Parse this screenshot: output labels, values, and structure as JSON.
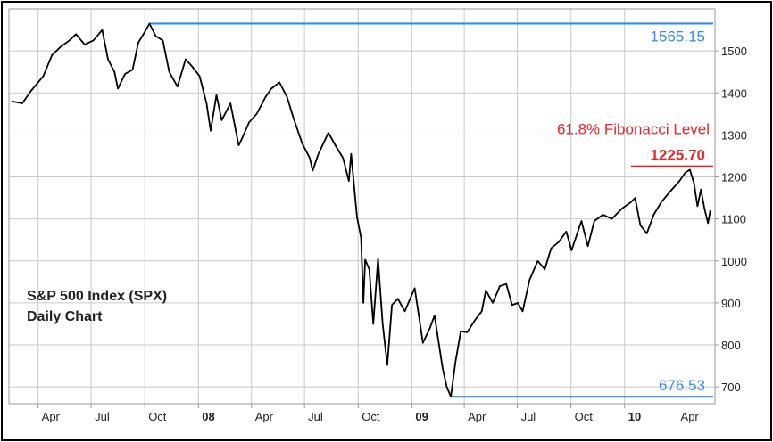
{
  "chart_data": {
    "type": "line",
    "title": "S&P 500 Index (SPX)",
    "subtitle": "Daily Chart",
    "ylim": [
      660,
      1600
    ],
    "y_ticks": [
      700,
      800,
      900,
      1000,
      1100,
      1200,
      1300,
      1400,
      1500
    ],
    "x_ticks": [
      {
        "label": "Apr",
        "date": "2007-04-01",
        "bold": false
      },
      {
        "label": "Jul",
        "date": "2007-07-01",
        "bold": false
      },
      {
        "label": "Oct",
        "date": "2007-10-01",
        "bold": false
      },
      {
        "label": "08",
        "date": "2008-01-01",
        "bold": true
      },
      {
        "label": "Apr",
        "date": "2008-04-01",
        "bold": false
      },
      {
        "label": "Jul",
        "date": "2008-07-01",
        "bold": false
      },
      {
        "label": "Oct",
        "date": "2008-10-01",
        "bold": false
      },
      {
        "label": "09",
        "date": "2009-01-01",
        "bold": true
      },
      {
        "label": "Apr",
        "date": "2009-04-01",
        "bold": false
      },
      {
        "label": "Jul",
        "date": "2009-07-01",
        "bold": false
      },
      {
        "label": "Oct",
        "date": "2009-10-01",
        "bold": false
      },
      {
        "label": "10",
        "date": "2010-01-01",
        "bold": true
      },
      {
        "label": "Apr",
        "date": "2010-04-01",
        "bold": false
      }
    ],
    "xlim": [
      "2007-02-10",
      "2010-06-05"
    ],
    "grid": true,
    "series": [
      {
        "color": "#000000",
        "points": [
          [
            "2007-02-15",
            1380
          ],
          [
            "2007-03-05",
            1375
          ],
          [
            "2007-03-20",
            1405
          ],
          [
            "2007-04-10",
            1440
          ],
          [
            "2007-04-25",
            1490
          ],
          [
            "2007-05-10",
            1510
          ],
          [
            "2007-05-25",
            1525
          ],
          [
            "2007-06-05",
            1540
          ],
          [
            "2007-06-20",
            1515
          ],
          [
            "2007-07-05",
            1525
          ],
          [
            "2007-07-20",
            1550
          ],
          [
            "2007-07-30",
            1480
          ],
          [
            "2007-08-10",
            1450
          ],
          [
            "2007-08-16",
            1410
          ],
          [
            "2007-08-28",
            1445
          ],
          [
            "2007-09-10",
            1455
          ],
          [
            "2007-09-20",
            1520
          ],
          [
            "2007-10-01",
            1545
          ],
          [
            "2007-10-09",
            1565
          ],
          [
            "2007-10-20",
            1535
          ],
          [
            "2007-11-01",
            1525
          ],
          [
            "2007-11-12",
            1450
          ],
          [
            "2007-11-26",
            1415
          ],
          [
            "2007-12-10",
            1480
          ],
          [
            "2007-12-20",
            1465
          ],
          [
            "2008-01-03",
            1440
          ],
          [
            "2008-01-15",
            1375
          ],
          [
            "2008-01-22",
            1310
          ],
          [
            "2008-02-01",
            1395
          ],
          [
            "2008-02-10",
            1335
          ],
          [
            "2008-02-25",
            1375
          ],
          [
            "2008-03-10",
            1275
          ],
          [
            "2008-03-17",
            1295
          ],
          [
            "2008-03-28",
            1330
          ],
          [
            "2008-04-10",
            1350
          ],
          [
            "2008-04-25",
            1390
          ],
          [
            "2008-05-05",
            1410
          ],
          [
            "2008-05-19",
            1425
          ],
          [
            "2008-06-01",
            1390
          ],
          [
            "2008-06-12",
            1340
          ],
          [
            "2008-06-27",
            1280
          ],
          [
            "2008-07-10",
            1245
          ],
          [
            "2008-07-15",
            1215
          ],
          [
            "2008-07-25",
            1255
          ],
          [
            "2008-08-11",
            1305
          ],
          [
            "2008-08-25",
            1270
          ],
          [
            "2008-09-05",
            1245
          ],
          [
            "2008-09-15",
            1190
          ],
          [
            "2008-09-19",
            1255
          ],
          [
            "2008-09-29",
            1105
          ],
          [
            "2008-10-06",
            1055
          ],
          [
            "2008-10-10",
            900
          ],
          [
            "2008-10-13",
            1003
          ],
          [
            "2008-10-20",
            980
          ],
          [
            "2008-10-27",
            850
          ],
          [
            "2008-11-04",
            1005
          ],
          [
            "2008-11-12",
            850
          ],
          [
            "2008-11-20",
            752
          ],
          [
            "2008-11-28",
            895
          ],
          [
            "2008-12-08",
            910
          ],
          [
            "2008-12-20",
            880
          ],
          [
            "2009-01-06",
            935
          ],
          [
            "2009-01-20",
            805
          ],
          [
            "2009-02-01",
            840
          ],
          [
            "2009-02-09",
            870
          ],
          [
            "2009-02-23",
            743
          ],
          [
            "2009-03-02",
            700
          ],
          [
            "2009-03-09",
            677
          ],
          [
            "2009-03-17",
            760
          ],
          [
            "2009-03-26",
            832
          ],
          [
            "2009-04-06",
            830
          ],
          [
            "2009-04-20",
            860
          ],
          [
            "2009-05-01",
            880
          ],
          [
            "2009-05-08",
            930
          ],
          [
            "2009-05-20",
            900
          ],
          [
            "2009-06-01",
            940
          ],
          [
            "2009-06-12",
            945
          ],
          [
            "2009-06-22",
            895
          ],
          [
            "2009-07-02",
            900
          ],
          [
            "2009-07-10",
            880
          ],
          [
            "2009-07-22",
            955
          ],
          [
            "2009-08-05",
            1000
          ],
          [
            "2009-08-17",
            980
          ],
          [
            "2009-08-28",
            1030
          ],
          [
            "2009-09-10",
            1045
          ],
          [
            "2009-09-23",
            1070
          ],
          [
            "2009-10-02",
            1025
          ],
          [
            "2009-10-19",
            1095
          ],
          [
            "2009-10-30",
            1035
          ],
          [
            "2009-11-10",
            1095
          ],
          [
            "2009-11-25",
            1110
          ],
          [
            "2009-12-10",
            1100
          ],
          [
            "2009-12-28",
            1125
          ],
          [
            "2010-01-12",
            1140
          ],
          [
            "2010-01-19",
            1150
          ],
          [
            "2010-01-28",
            1085
          ],
          [
            "2010-02-08",
            1065
          ],
          [
            "2010-02-20",
            1110
          ],
          [
            "2010-03-05",
            1140
          ],
          [
            "2010-03-20",
            1165
          ],
          [
            "2010-04-05",
            1190
          ],
          [
            "2010-04-15",
            1210
          ],
          [
            "2010-04-23",
            1217
          ],
          [
            "2010-04-30",
            1185
          ],
          [
            "2010-05-06",
            1130
          ],
          [
            "2010-05-12",
            1170
          ],
          [
            "2010-05-18",
            1125
          ],
          [
            "2010-05-24",
            1090
          ],
          [
            "2010-05-28",
            1120
          ]
        ]
      }
    ],
    "annotations": [
      {
        "label": "1565.15",
        "value": 1565.15,
        "color": "#2f8fe8",
        "start": "2007-10-09",
        "end": "2010-06-05",
        "text_position": "below-right"
      },
      {
        "label": "676.53",
        "value": 676.53,
        "color": "#2f8fe8",
        "start": "2009-03-09",
        "end": "2010-06-05",
        "text_position": "above-right"
      },
      {
        "label": "1225.70",
        "value": 1225.7,
        "color": "#e8262b",
        "start": "2010-01-12",
        "end": "2010-06-05",
        "text_position": "above-right"
      },
      {
        "label": "61.8% Fibonacci Level",
        "color": "#e8262b",
        "text_position": "above-red-line"
      }
    ]
  }
}
